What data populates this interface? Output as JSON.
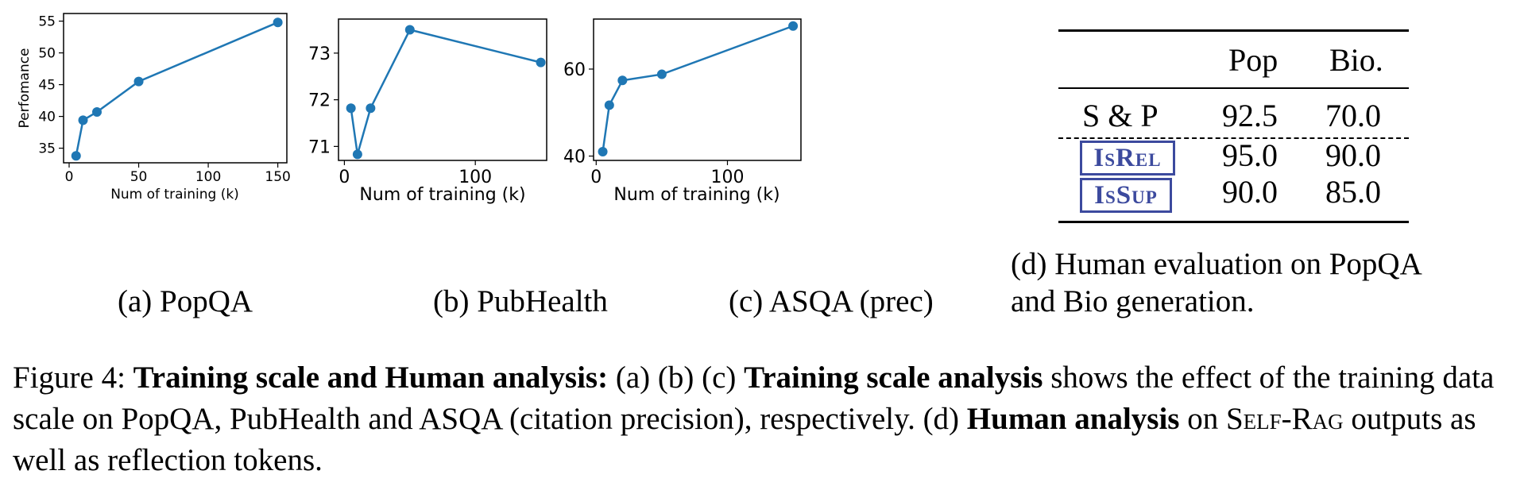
{
  "chart_data": [
    {
      "type": "line",
      "x": [
        5,
        10,
        20,
        50,
        150
      ],
      "y": [
        33.8,
        39.4,
        40.7,
        45.5,
        54.8
      ],
      "xlabel": "Num of training (k)",
      "ylabel": "Perfomance",
      "xticks": [
        0,
        50,
        100,
        150
      ],
      "yticks": [
        35,
        40,
        45,
        50,
        55
      ],
      "xlim": [
        -4,
        156.5
      ],
      "ylim": [
        32.7,
        56.2
      ],
      "color": "#1f77b4",
      "grid": false
    },
    {
      "type": "line",
      "x": [
        5,
        10,
        20,
        50,
        150
      ],
      "y": [
        71.82,
        70.83,
        71.82,
        73.5,
        72.8
      ],
      "xlabel": "Num of training (k)",
      "ylabel": "",
      "xticks": [
        0,
        100
      ],
      "yticks": [
        71,
        72,
        73
      ],
      "xlim": [
        -4.5,
        154.5
      ],
      "ylim": [
        70.7,
        73.73
      ],
      "color": "#1f77b4",
      "grid": false
    },
    {
      "type": "line",
      "x": [
        5,
        10,
        20,
        50,
        150
      ],
      "y": [
        41,
        51.7,
        57.4,
        58.8,
        69.9
      ],
      "xlabel": "Num of training (k)",
      "ylabel": "",
      "xticks": [
        0,
        100
      ],
      "yticks": [
        40,
        60
      ],
      "xlim": [
        -2,
        156
      ],
      "ylim": [
        39,
        71.5
      ],
      "color": "#1f77b4",
      "grid": false
    }
  ],
  "subcaptions": {
    "a": "(a) PopQA",
    "b": "(b) PubHealth",
    "c": "(c) ASQA (prec)",
    "d_line1": "(d) Human evaluation on PopQA",
    "d_line2": "and Bio generation."
  },
  "table": {
    "headers": [
      "Pop",
      "Bio."
    ],
    "rows": [
      {
        "label": "S & P",
        "token": "",
        "values": [
          "92.5",
          "70.0"
        ]
      },
      {
        "label": "",
        "token": "IsRel",
        "values": [
          "95.0",
          "90.0"
        ]
      },
      {
        "label": "",
        "token": "IsSup",
        "values": [
          "90.0",
          "85.0"
        ]
      }
    ]
  },
  "caption": {
    "prefix": "Figure 4: ",
    "bold1": "Training scale and Human analysis:",
    "part1": " (a) (b) (c) ",
    "bold2": "Training scale analysis",
    "part2": " shows the effect of the training data scale on PopQA, PubHealth and ASQA (citation precision), respectively. (d) ",
    "bold3": "Human analysis",
    "part3": " on ",
    "system": "Self-Rag",
    "part4": " outputs as well as reflection tokens."
  }
}
